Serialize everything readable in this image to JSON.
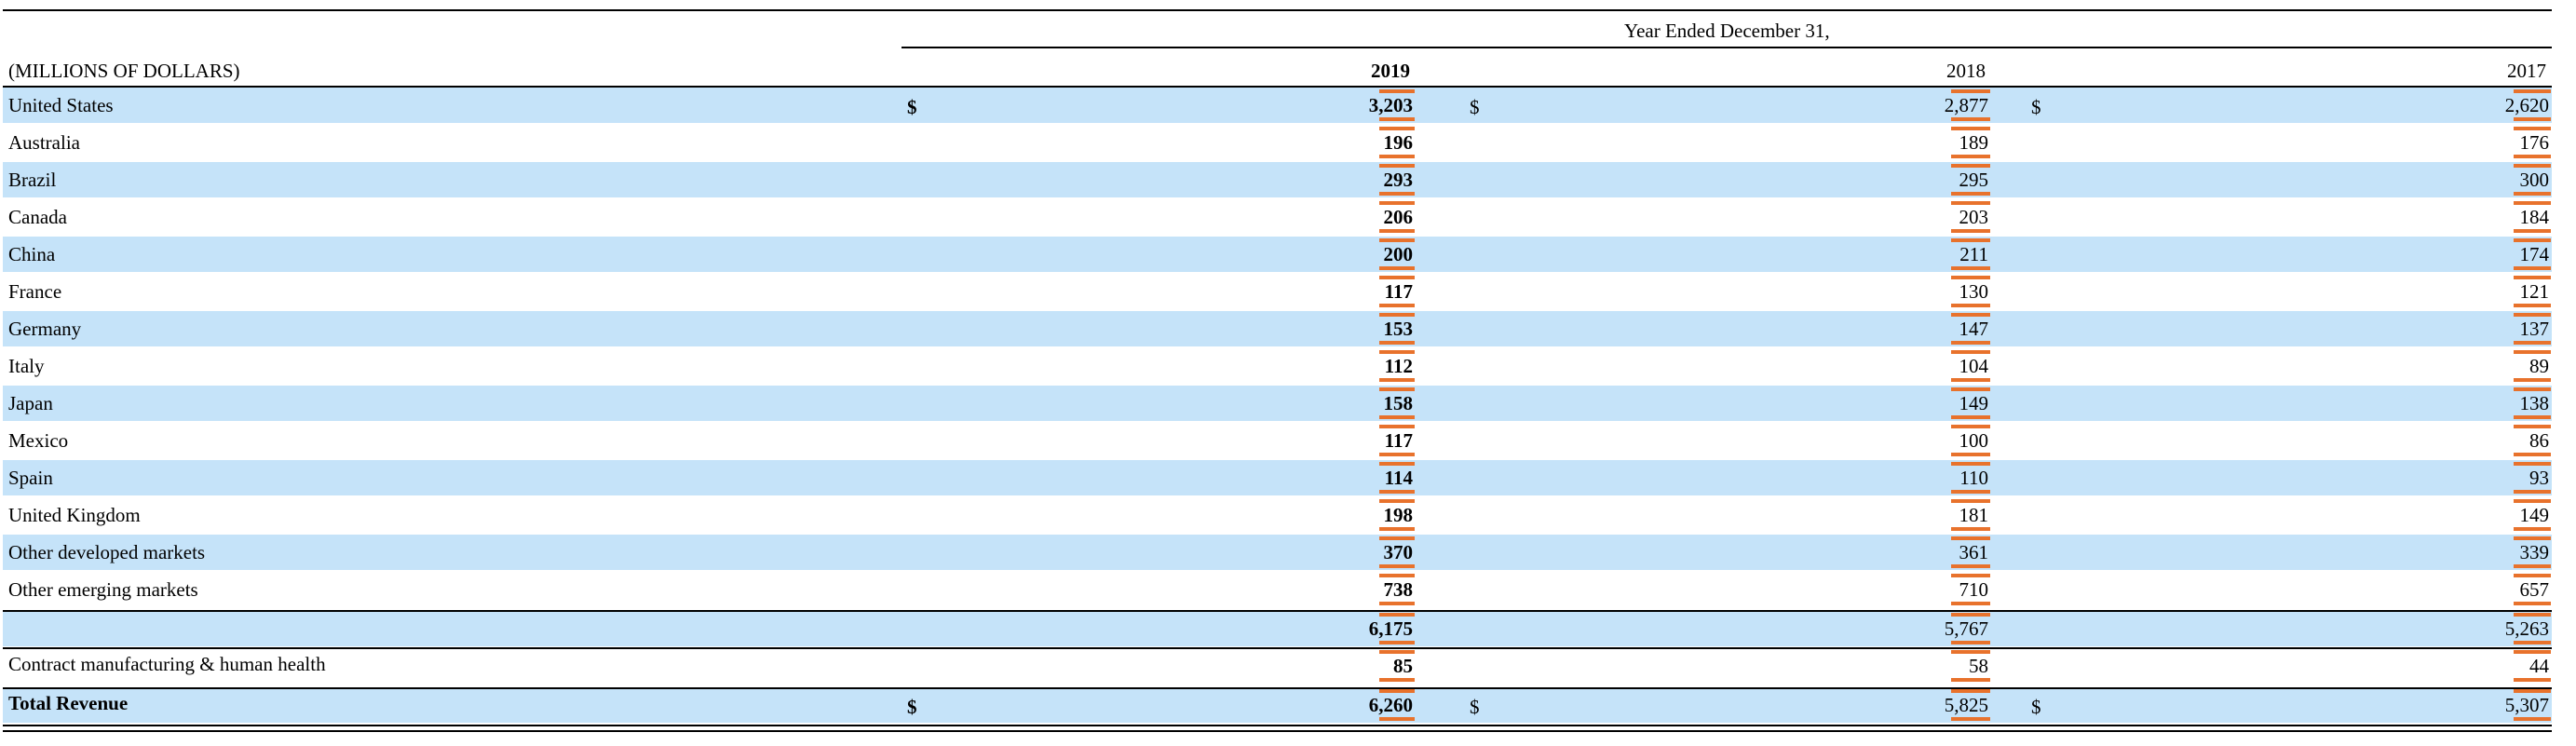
{
  "header": {
    "period_label": "Year Ended December 31,",
    "unit_label": "(MILLIONS OF DOLLARS)",
    "years": [
      "2019",
      "2018",
      "2017"
    ]
  },
  "currency_symbol": "$",
  "rows": [
    {
      "label": "United States",
      "v2019": "3,203",
      "v2018": "2,877",
      "v2017": "2,620"
    },
    {
      "label": "Australia",
      "v2019": "196",
      "v2018": "189",
      "v2017": "176"
    },
    {
      "label": "Brazil",
      "v2019": "293",
      "v2018": "295",
      "v2017": "300"
    },
    {
      "label": "Canada",
      "v2019": "206",
      "v2018": "203",
      "v2017": "184"
    },
    {
      "label": "China",
      "v2019": "200",
      "v2018": "211",
      "v2017": "174"
    },
    {
      "label": "France",
      "v2019": "117",
      "v2018": "130",
      "v2017": "121"
    },
    {
      "label": "Germany",
      "v2019": "153",
      "v2018": "147",
      "v2017": "137"
    },
    {
      "label": "Italy",
      "v2019": "112",
      "v2018": "104",
      "v2017": "89"
    },
    {
      "label": "Japan",
      "v2019": "158",
      "v2018": "149",
      "v2017": "138"
    },
    {
      "label": "Mexico",
      "v2019": "117",
      "v2018": "100",
      "v2017": "86"
    },
    {
      "label": "Spain",
      "v2019": "114",
      "v2018": "110",
      "v2017": "93"
    },
    {
      "label": "United Kingdom",
      "v2019": "198",
      "v2018": "181",
      "v2017": "149"
    },
    {
      "label": "Other developed markets",
      "v2019": "370",
      "v2018": "361",
      "v2017": "339"
    },
    {
      "label": "Other emerging markets",
      "v2019": "738",
      "v2018": "710",
      "v2017": "657"
    },
    {
      "label": "",
      "v2019": "6,175",
      "v2018": "5,767",
      "v2017": "5,263"
    },
    {
      "label": "Contract manufacturing & human health",
      "v2019": "85",
      "v2018": "58",
      "v2017": "44"
    },
    {
      "label": "Total Revenue",
      "v2019": "6,260",
      "v2018": "5,825",
      "v2017": "5,307"
    }
  ]
}
